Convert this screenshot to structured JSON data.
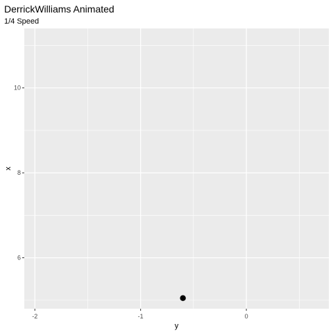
{
  "chart_data": {
    "type": "scatter",
    "title": "DerrickWilliams Animated",
    "subtitle": "1/4 Speed",
    "xlabel": "y",
    "ylabel": "x",
    "xlim": [
      -2.1,
      0.78
    ],
    "ylim": [
      4.8,
      11.4
    ],
    "x_ticks": [
      -2,
      -1,
      0
    ],
    "x_tick_labels": [
      "-2",
      "-1",
      "0"
    ],
    "y_ticks": [
      6,
      8,
      10
    ],
    "y_tick_labels": [
      "6",
      "8",
      "10"
    ],
    "x_minor_ticks": [
      -1.5,
      -0.5,
      0.5
    ],
    "y_minor_ticks": [
      5,
      7,
      9,
      11
    ],
    "grid": true,
    "legend": "none",
    "points": [
      {
        "x": -0.6,
        "y": 5.05
      }
    ],
    "colors": {
      "panel_background": "#ebebeb",
      "grid": "#ffffff",
      "point": "#000000"
    }
  }
}
